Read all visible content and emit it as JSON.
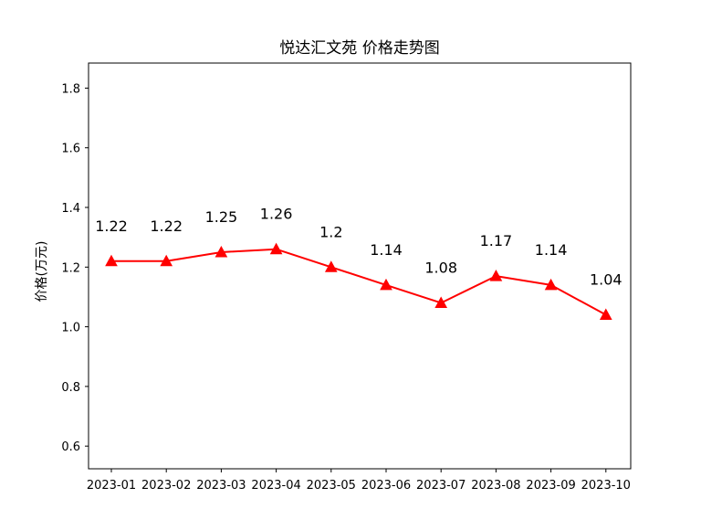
{
  "chart_data": {
    "type": "line",
    "title": "悦达汇文苑 价格走势图",
    "xlabel": "",
    "ylabel": "价格(万元)",
    "categories": [
      "2023-01",
      "2023-02",
      "2023-03",
      "2023-04",
      "2023-05",
      "2023-06",
      "2023-07",
      "2023-08",
      "2023-09",
      "2023-10"
    ],
    "series": [
      {
        "values": [
          1.22,
          1.22,
          1.25,
          1.26,
          1.2,
          1.14,
          1.08,
          1.17,
          1.14,
          1.04
        ],
        "data_labels": [
          "1.22",
          "1.22",
          "1.25",
          "1.26",
          "1.2",
          "1.14",
          "1.08",
          "1.17",
          "1.14",
          "1.04"
        ],
        "color": "#ff0000",
        "marker": "triangle-up"
      }
    ],
    "ylim": [
      0.524,
      1.884
    ],
    "yticks": [
      0.6,
      0.8,
      1.0,
      1.2,
      1.4,
      1.6,
      1.8
    ],
    "ytick_labels": [
      "0.6",
      "0.8",
      "1.0",
      "1.2",
      "1.4",
      "1.6",
      "1.8"
    ],
    "grid": false,
    "legend": "none"
  }
}
